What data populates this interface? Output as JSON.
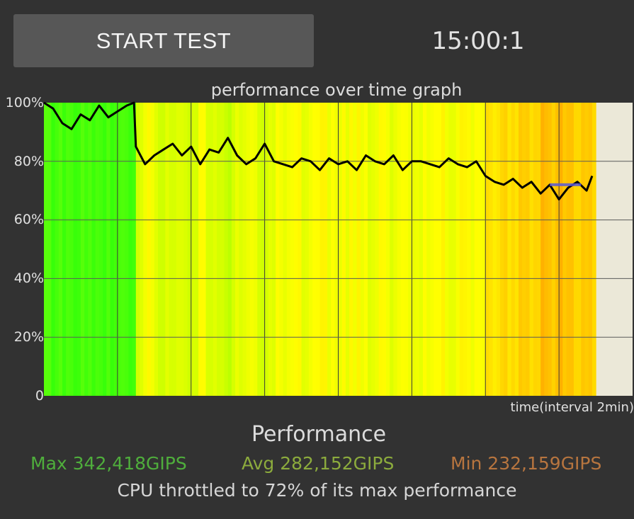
{
  "header": {
    "start_button_label": "START TEST",
    "timer": "15:00:1"
  },
  "graph": {
    "title": "performance over time graph",
    "y_ticks": [
      "100%",
      "80%",
      "60%",
      "40%",
      "20%",
      "0"
    ],
    "x_label": "time(interval 2min)"
  },
  "chart_data": {
    "type": "line",
    "title": "performance over time graph",
    "xlabel": "time(interval 2min)",
    "ylabel": "",
    "ylim": [
      0,
      100
    ],
    "x_unit": "minutes",
    "grid": true,
    "series": [
      {
        "x": [
          0,
          0.5,
          1,
          1.5,
          2,
          2.5,
          3,
          3.5,
          4,
          4.5,
          4.9,
          5,
          5.5,
          6,
          6.5,
          7,
          7.5,
          8,
          8.5,
          9,
          9.5,
          10,
          10.5,
          11,
          11.5,
          12,
          12.5,
          13,
          13.5,
          14,
          14.5,
          15,
          15.5,
          16,
          16.5,
          17,
          17.5,
          18,
          18.5,
          19,
          19.5,
          20,
          20.5,
          21,
          21.5,
          22,
          22.5,
          23,
          23.5,
          24,
          24.5,
          25,
          25.5,
          26,
          26.5,
          27,
          27.5,
          28,
          28.5,
          29,
          29.5,
          29.8
        ],
        "values": [
          100,
          98,
          93,
          91,
          96,
          94,
          99,
          95,
          97,
          99,
          100,
          85,
          79,
          82,
          84,
          86,
          82,
          85,
          79,
          84,
          83,
          88,
          82,
          79,
          81,
          86,
          80,
          79,
          78,
          81,
          80,
          77,
          81,
          79,
          80,
          77,
          82,
          80,
          79,
          82,
          77,
          80,
          80,
          79,
          78,
          81,
          79,
          78,
          80,
          75,
          73,
          72,
          74,
          71,
          73,
          69,
          72,
          67,
          71,
          73,
          70,
          75
        ]
      }
    ],
    "min_marker": {
      "x_start": 27.5,
      "x_end": 29.2,
      "value": 72,
      "color": "#5a5ad8"
    },
    "line_color": "#000000",
    "background_color": "#ebe8d8",
    "fill_colors": [
      "#44ee22",
      "#ccf000",
      "#ffc800"
    ]
  },
  "stats": {
    "heading": "Performance",
    "max": "Max 342,418GIPS",
    "avg": "Avg 282,152GIPS",
    "min": "Min 232,159GIPS",
    "throttle_text": "CPU throttled to 72% of its max performance"
  }
}
